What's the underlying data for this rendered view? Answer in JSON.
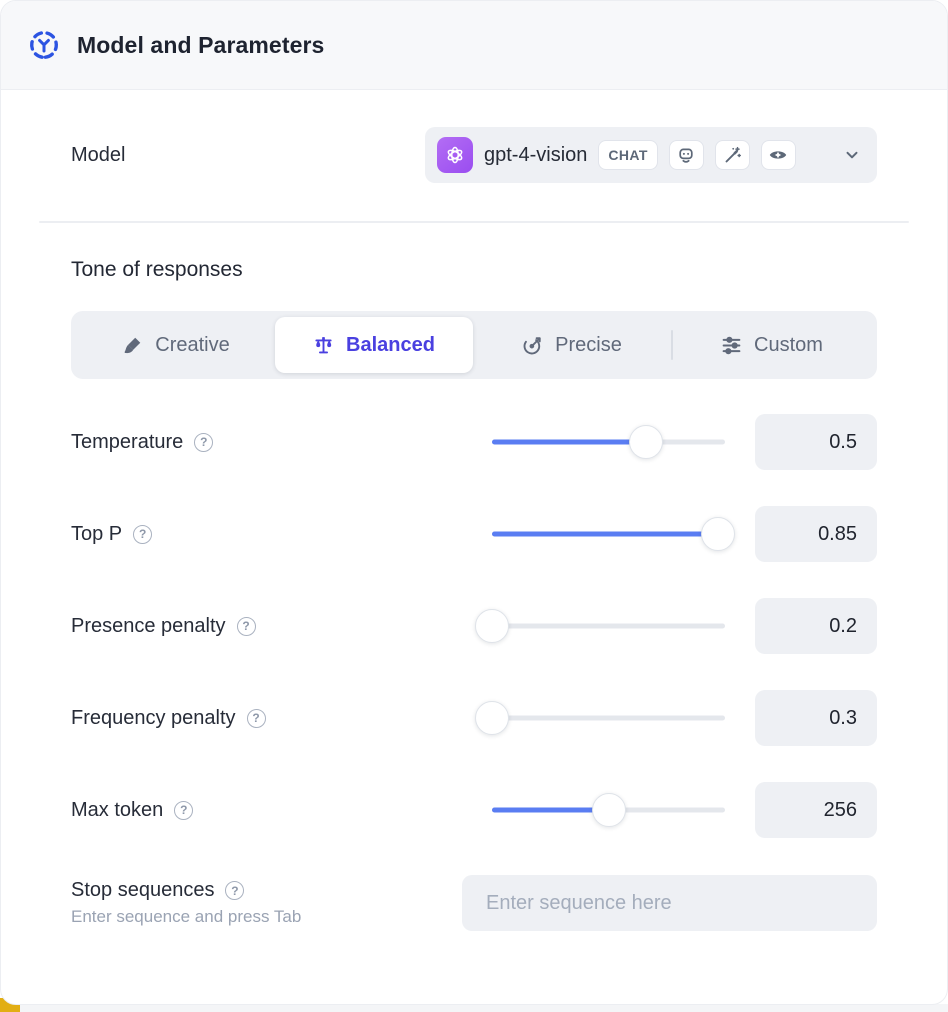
{
  "header": {
    "title": "Model and Parameters",
    "icon": "model-dashed-circle-icon"
  },
  "model_row": {
    "label": "Model",
    "selected_model": "gpt-4-vision",
    "provider_icon": "openai-logo",
    "type_badge": "CHAT",
    "capability_icons": [
      "robot-icon",
      "magic-wand-icon",
      "vision-eye-icon"
    ],
    "expand_icon": "chevron-down-icon"
  },
  "tone": {
    "label": "Tone of responses",
    "options": [
      {
        "label": "Creative",
        "icon": "paintbrush-icon",
        "selected": false
      },
      {
        "label": "Balanced",
        "icon": "balance-scale-icon",
        "selected": true
      },
      {
        "label": "Precise",
        "icon": "target-icon",
        "selected": false
      },
      {
        "label": "Custom",
        "icon": "sliders-icon",
        "selected": false
      }
    ]
  },
  "parameters": [
    {
      "label": "Temperature",
      "value": "0.5",
      "fill_pct": 66
    },
    {
      "label": "Top P",
      "value": "0.85",
      "fill_pct": 97
    },
    {
      "label": "Presence penalty",
      "value": "0.2",
      "fill_pct": 0
    },
    {
      "label": "Frequency penalty",
      "value": "0.3",
      "fill_pct": 0
    },
    {
      "label": "Max token",
      "value": "256",
      "fill_pct": 50
    }
  ],
  "stop_sequences": {
    "label": "Stop sequences",
    "hint": "Enter sequence and press Tab",
    "placeholder": "Enter sequence here"
  },
  "help_glyph": "?",
  "colors": {
    "accent_indigo": "#4a40e0",
    "slider_blue": "#5a7df2",
    "header_icon_blue": "#2c54e2",
    "provider_purple": "#a55bf3",
    "field_gray": "#eef0f4"
  }
}
